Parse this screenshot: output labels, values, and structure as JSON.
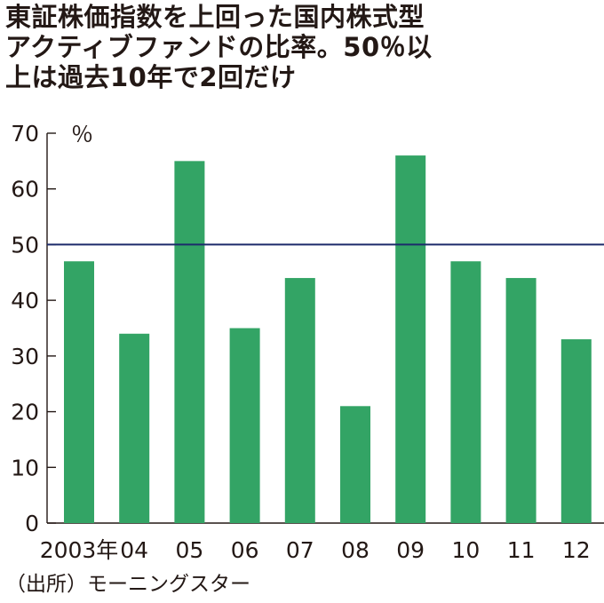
{
  "title_lines": [
    "東証株価指数を上回った国内株式型",
    "アクティブファンドの比率。50％以",
    "上は過去10年で2回だけ"
  ],
  "source": "（出所）モーニングスター",
  "chart_data": {
    "type": "bar",
    "title": "東証株価指数を上回った国内株式型アクティブファンドの比率。50％以上は過去10年で2回だけ",
    "categories": [
      "2003年",
      "04",
      "05",
      "06",
      "07",
      "08",
      "09",
      "10",
      "11",
      "12"
    ],
    "values": [
      47,
      34,
      65,
      35,
      44,
      21,
      66,
      47,
      44,
      33
    ],
    "ylabel": "％",
    "ylim": [
      0,
      70
    ],
    "yticks": [
      0,
      10,
      20,
      30,
      40,
      50,
      60,
      70
    ],
    "reference_line": 50,
    "grid": false,
    "bar_color": "#33a465",
    "reference_line_color": "#1c2a6b",
    "axis_color": "#231815"
  }
}
